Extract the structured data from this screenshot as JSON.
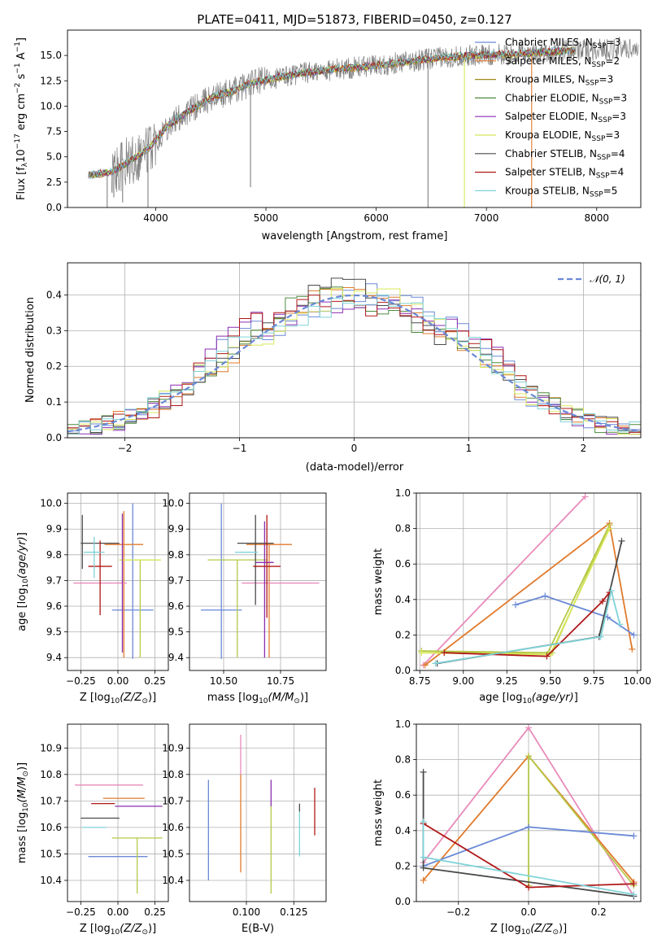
{
  "figure": {
    "title": "PLATE=0411, MJD=51873, FIBERID=0450, z=0.127"
  },
  "colors": {
    "miles_chabrier": "#6a89d6",
    "miles_salpeter": "#e07a2c",
    "miles_kroupa": "#9d8a1a",
    "elodie_chabrier": "#4d8a3c",
    "elodie_salpeter": "#8a2fb0",
    "elodie_kroupa": "#d8e85a",
    "stelib_chabrier": "#4a4a4a",
    "stelib_salpeter": "#b01818",
    "stelib_kroupa": "#7fd3d8",
    "data_gray": "#808080",
    "pink": "#e88aba",
    "olive": "#b6c84a",
    "gauss": "#6a89d6"
  },
  "chart_data": [
    {
      "id": "spectrum",
      "type": "line",
      "xlabel": "wavelength [Angstrom, rest frame]",
      "ylabel": "Flux [f_λ 10^-17 erg cm^-2 s^-1 A^-1]",
      "xlim": [
        3200,
        8400
      ],
      "ylim": [
        0,
        17.5
      ],
      "xticks": [
        4000,
        5000,
        6000,
        7000,
        8000
      ],
      "yticks": [
        0.0,
        2.5,
        5.0,
        7.5,
        10.0,
        12.5,
        15.0
      ],
      "legend": [
        {
          "label": "Chabrier MILES, N",
          "sub": "SSP",
          "suffix": "=3",
          "color": "miles_chabrier"
        },
        {
          "label": "Salpeter MILES, N",
          "sub": "SSP",
          "suffix": "=2",
          "color": "miles_salpeter"
        },
        {
          "label": "Kroupa MILES, N",
          "sub": "SSP",
          "suffix": "=3",
          "color": "miles_kroupa"
        },
        {
          "label": "Chabrier ELODIE, N",
          "sub": "SSP",
          "suffix": "=3",
          "color": "elodie_chabrier"
        },
        {
          "label": "Salpeter ELODIE, N",
          "sub": "SSP",
          "suffix": "=3",
          "color": "elodie_salpeter"
        },
        {
          "label": "Kroupa ELODIE, N",
          "sub": "SSP",
          "suffix": "=3",
          "color": "elodie_kroupa"
        },
        {
          "label": "Chabrier STELIB, N",
          "sub": "SSP",
          "suffix": "=4",
          "color": "stelib_chabrier"
        },
        {
          "label": "Salpeter STELIB, N",
          "sub": "SSP",
          "suffix": "=4",
          "color": "stelib_salpeter"
        },
        {
          "label": "Kroupa STELIB, N",
          "sub": "SSP",
          "suffix": "=5",
          "color": "stelib_kroupa"
        }
      ],
      "trend": {
        "x": [
          3400,
          3600,
          3800,
          3950,
          4100,
          4300,
          4500,
          4700,
          4850,
          5000,
          5300,
          5600,
          6000,
          6300,
          6600,
          6900,
          7200,
          7500,
          7800,
          8200
        ],
        "y": [
          3.2,
          3.5,
          4.8,
          6.0,
          8.0,
          9.5,
          10.8,
          11.5,
          12.2,
          12.6,
          13.2,
          13.6,
          14.0,
          14.4,
          14.8,
          15.0,
          15.1,
          15.3,
          15.5,
          15.7
        ]
      }
    },
    {
      "id": "residuals",
      "type": "histogram",
      "xlabel": "(data-model)/error",
      "ylabel": "Normed distribution",
      "xlim": [
        -2.5,
        2.5
      ],
      "ylim": [
        0,
        0.49
      ],
      "xticks": [
        -2,
        -1,
        0,
        1,
        2
      ],
      "yticks": [
        0.0,
        0.1,
        0.2,
        0.3,
        0.4
      ],
      "legend_label": "N(0,1)"
    },
    {
      "id": "age_vs_Z",
      "type": "scatter",
      "xlabel": "Z [log10(Z/Z⊙)]",
      "ylabel": "age [log10(age/yr)]",
      "xlim": [
        -0.34,
        0.34
      ],
      "ylim": [
        9.35,
        10.04
      ],
      "xticks": [
        -0.25,
        0.0,
        0.25
      ],
      "xticklabels": [
        "−0.25",
        "0.00",
        "0.25"
      ],
      "yticks": [
        9.4,
        9.5,
        9.6,
        9.7,
        9.8,
        9.9,
        10.0
      ],
      "points": [
        {
          "x": 0.1,
          "y": 9.585,
          "xerr": 0.14,
          "yerr": [
            0.19,
            0.415
          ],
          "color": "miles_chabrier"
        },
        {
          "x": 0.04,
          "y": 9.84,
          "xerr": 0.13,
          "yerr": [
            0.44,
            0.13
          ],
          "color": "miles_salpeter"
        },
        {
          "x": -0.12,
          "y": 9.69,
          "xerr": 0.18,
          "yerr": [
            0.0,
            0.0
          ],
          "color": "pink"
        },
        {
          "x": 0.15,
          "y": 9.78,
          "xerr": 0.14,
          "yerr": [
            0.38,
            0.0
          ],
          "color": "olive"
        },
        {
          "x": 0.15,
          "y": 9.78,
          "xerr": 0.14,
          "yerr": [
            0.0,
            0.0
          ],
          "color": "elodie_kroupa"
        },
        {
          "x": 0.03,
          "y": 9.84,
          "xerr": 0.0,
          "yerr": [
            0.42,
            0.12
          ],
          "color": "elodie_salpeter"
        },
        {
          "x": -0.12,
          "y": 9.845,
          "xerr": 0.13,
          "yerr": [
            0.0,
            0.0
          ],
          "color": "stelib_chabrier"
        },
        {
          "x": -0.12,
          "y": 9.755,
          "xerr": 0.08,
          "yerr": [
            0.19,
            0.1
          ],
          "color": "stelib_salpeter"
        },
        {
          "x": -0.16,
          "y": 9.81,
          "xerr": 0.07,
          "yerr": [
            0.1,
            0.06
          ],
          "color": "stelib_kroupa"
        },
        {
          "x": -0.24,
          "y": 9.845,
          "xerr": 0.0,
          "yerr": [
            0.1,
            0.11
          ],
          "color": "stelib_chabrier"
        }
      ]
    },
    {
      "id": "age_vs_mass",
      "type": "scatter",
      "xlabel": "mass [log10(M/M⊙)]",
      "xlim": [
        10.35,
        10.95
      ],
      "ylim": [
        9.35,
        10.04
      ],
      "xticks": [
        10.5,
        10.75
      ],
      "xticklabels": [
        "10.50",
        "10.75"
      ],
      "yticks": [
        9.4,
        9.5,
        9.6,
        9.7,
        9.8,
        9.9,
        10.0
      ],
      "points": [
        {
          "x": 10.49,
          "y": 9.585,
          "xerr": 0.09,
          "yerr": [
            0.19,
            0.415
          ],
          "color": "miles_chabrier"
        },
        {
          "x": 10.7,
          "y": 9.84,
          "xerr": 0.1,
          "yerr": [
            0.44,
            0.0
          ],
          "color": "miles_salpeter"
        },
        {
          "x": 10.75,
          "y": 9.69,
          "xerr": 0.17,
          "yerr": [
            0.0,
            0.0
          ],
          "color": "pink"
        },
        {
          "x": 10.56,
          "y": 9.78,
          "xerr": 0.13,
          "yerr": [
            0.38,
            0.0
          ],
          "color": "olive"
        },
        {
          "x": 10.56,
          "y": 9.78,
          "xerr": 0.0,
          "yerr": [
            0.0,
            0.0
          ],
          "color": "elodie_kroupa"
        },
        {
          "x": 10.68,
          "y": 9.77,
          "xerr": 0.04,
          "yerr": [
            0.37,
            0.16
          ],
          "color": "elodie_salpeter"
        },
        {
          "x": 10.64,
          "y": 9.845,
          "xerr": 0.08,
          "yerr": [
            0.24,
            0.11
          ],
          "color": "stelib_chabrier"
        },
        {
          "x": 10.69,
          "y": 9.755,
          "xerr": 0.06,
          "yerr": [
            0.2,
            0.2
          ],
          "color": "stelib_salpeter"
        },
        {
          "x": 10.6,
          "y": 9.81,
          "xerr": 0.05,
          "yerr": [
            0.0,
            0.0
          ],
          "color": "stelib_kroupa"
        }
      ]
    },
    {
      "id": "weight_vs_age",
      "type": "line",
      "xlabel": "age [log10(age/yr)]",
      "ylabel": "mass weight",
      "xlim": [
        8.73,
        10.02
      ],
      "ylim": [
        0,
        1.0
      ],
      "xticks": [
        8.75,
        9.0,
        9.25,
        9.5,
        9.75,
        10.0
      ],
      "xticklabels": [
        "8.75",
        "9.00",
        "9.25",
        "9.50",
        "9.75",
        "10.00"
      ],
      "yticks": [
        0.0,
        0.2,
        0.4,
        0.6,
        0.8,
        1.0
      ],
      "series": [
        {
          "color": "pink",
          "x": [
            8.77,
            9.7
          ],
          "y": [
            0.03,
            0.98
          ]
        },
        {
          "color": "miles_salpeter",
          "x": [
            8.78,
            9.84,
            9.97
          ],
          "y": [
            0.03,
            0.83,
            0.12
          ]
        },
        {
          "color": "olive",
          "x": [
            8.76,
            9.48,
            9.84,
            9.51,
            8.76
          ],
          "y": [
            0.11,
            0.09,
            0.82,
            0.1,
            0.11
          ]
        },
        {
          "color": "elodie_kroupa",
          "x": [
            8.76,
            9.5,
            9.84
          ],
          "y": [
            0.1,
            0.09,
            0.8
          ]
        },
        {
          "color": "miles_chabrier",
          "x": [
            9.3,
            9.47,
            9.83,
            9.98
          ],
          "y": [
            0.37,
            0.42,
            0.3,
            0.2
          ]
        },
        {
          "color": "stelib_chabrier",
          "x": [
            8.85,
            9.78,
            9.91
          ],
          "y": [
            0.04,
            0.19,
            0.73
          ]
        },
        {
          "color": "stelib_salpeter",
          "x": [
            8.89,
            9.48,
            9.8,
            9.84
          ],
          "y": [
            0.1,
            0.08,
            0.39,
            0.44
          ]
        },
        {
          "color": "stelib_kroupa",
          "x": [
            8.84,
            9.79,
            9.85,
            9.9
          ],
          "y": [
            0.04,
            0.19,
            0.45,
            0.26
          ]
        }
      ]
    },
    {
      "id": "mass_vs_Z",
      "type": "scatter",
      "xlabel": "Z [log10(Z/Z⊙)]",
      "ylabel": "mass [log10(M/M⊙)]",
      "xlim": [
        -0.34,
        0.34
      ],
      "ylim": [
        10.32,
        10.99
      ],
      "xticks": [
        -0.25,
        0.0,
        0.25
      ],
      "xticklabels": [
        "−0.25",
        "0.00",
        "0.25"
      ],
      "yticks": [
        10.4,
        10.5,
        10.6,
        10.7,
        10.8,
        10.9
      ],
      "points": [
        {
          "x": 0.0,
          "y": 10.49,
          "xerr": 0.2,
          "yerr": [
            0.0,
            0.0
          ],
          "color": "miles_chabrier"
        },
        {
          "x": 0.04,
          "y": 10.71,
          "xerr": 0.14,
          "yerr": [
            0.0,
            0.0
          ],
          "color": "miles_salpeter"
        },
        {
          "x": -0.06,
          "y": 10.76,
          "xerr": 0.23,
          "yerr": [
            0.0,
            0.0
          ],
          "color": "pink"
        },
        {
          "x": 0.13,
          "y": 10.56,
          "xerr": 0.17,
          "yerr": [
            0.21,
            0.0
          ],
          "color": "olive"
        },
        {
          "x": 0.06,
          "y": 10.56,
          "xerr": 0.0,
          "yerr": [
            0.0,
            0.0
          ],
          "color": "elodie_kroupa"
        },
        {
          "x": 0.14,
          "y": 10.68,
          "xerr": 0.16,
          "yerr": [
            0.0,
            0.0
          ],
          "color": "elodie_salpeter"
        },
        {
          "x": -0.12,
          "y": 10.635,
          "xerr": 0.13,
          "yerr": [
            0.0,
            0.0
          ],
          "color": "stelib_chabrier"
        },
        {
          "x": -0.1,
          "y": 10.69,
          "xerr": 0.08,
          "yerr": [
            0.0,
            0.0
          ],
          "color": "stelib_salpeter"
        },
        {
          "x": -0.16,
          "y": 10.6,
          "xerr": 0.08,
          "yerr": [
            0.0,
            0.0
          ],
          "color": "stelib_kroupa"
        }
      ]
    },
    {
      "id": "mass_vs_ebv",
      "type": "scatter",
      "xlabel": "E(B-V)",
      "xlim": [
        0.07,
        0.142
      ],
      "ylim": [
        10.32,
        10.99
      ],
      "xticks": [
        0.1,
        0.125
      ],
      "xticklabels": [
        "0.100",
        "0.125"
      ],
      "yticks": [
        10.4,
        10.5,
        10.6,
        10.7,
        10.8,
        10.9
      ],
      "points": [
        {
          "x": 0.08,
          "color": "miles_chabrier",
          "y": [
            10.4,
            10.78
          ]
        },
        {
          "x": 0.097,
          "color": "miles_salpeter",
          "y": [
            10.43,
            10.8
          ]
        },
        {
          "x": 0.097,
          "color": "pink",
          "y": [
            10.8,
            10.95
          ]
        },
        {
          "x": 0.113,
          "color": "olive",
          "y": [
            10.35,
            10.69
          ]
        },
        {
          "x": 0.113,
          "color": "elodie_salpeter",
          "y": [
            10.68,
            10.78
          ]
        },
        {
          "x": 0.128,
          "color": "stelib_kroupa",
          "y": [
            10.49,
            10.66
          ]
        },
        {
          "x": 0.128,
          "color": "stelib_chabrier",
          "y": [
            10.66,
            10.69
          ]
        },
        {
          "x": 0.136,
          "color": "stelib_salpeter",
          "y": [
            10.57,
            10.75
          ]
        }
      ]
    },
    {
      "id": "weight_vs_Z",
      "type": "line",
      "xlabel": "Z [log10(Z/Z⊙)]",
      "ylabel": "mass weight",
      "xlim": [
        -0.32,
        0.32
      ],
      "ylim": [
        0,
        1.0
      ],
      "xticks": [
        -0.2,
        0.0,
        0.2
      ],
      "xticklabels": [
        "−0.2",
        "0.0",
        "0.2"
      ],
      "yticks": [
        0.0,
        0.2,
        0.4,
        0.6,
        0.8,
        1.0
      ],
      "series": [
        {
          "color": "pink",
          "x": [
            -0.3,
            0.0,
            0.3
          ],
          "y": [
            0.22,
            0.98,
            0.03
          ]
        },
        {
          "color": "miles_salpeter",
          "x": [
            -0.3,
            0.0,
            0.3
          ],
          "y": [
            0.12,
            0.82,
            0.11
          ]
        },
        {
          "color": "olive",
          "x": [
            0.0,
            0.0,
            0.3
          ],
          "y": [
            0.09,
            0.82,
            0.09
          ]
        },
        {
          "color": "miles_chabrier",
          "x": [
            -0.3,
            0.0,
            0.3
          ],
          "y": [
            0.2,
            0.42,
            0.37
          ]
        },
        {
          "color": "stelib_chabrier",
          "x": [
            -0.3,
            -0.3,
            0.3
          ],
          "y": [
            0.73,
            0.19,
            0.03
          ]
        },
        {
          "color": "stelib_salpeter",
          "x": [
            -0.3,
            0.0,
            0.3
          ],
          "y": [
            0.44,
            0.08,
            0.1
          ]
        },
        {
          "color": "stelib_kroupa",
          "x": [
            -0.3,
            -0.3,
            0.3
          ],
          "y": [
            0.45,
            0.25,
            0.04
          ]
        }
      ]
    }
  ]
}
